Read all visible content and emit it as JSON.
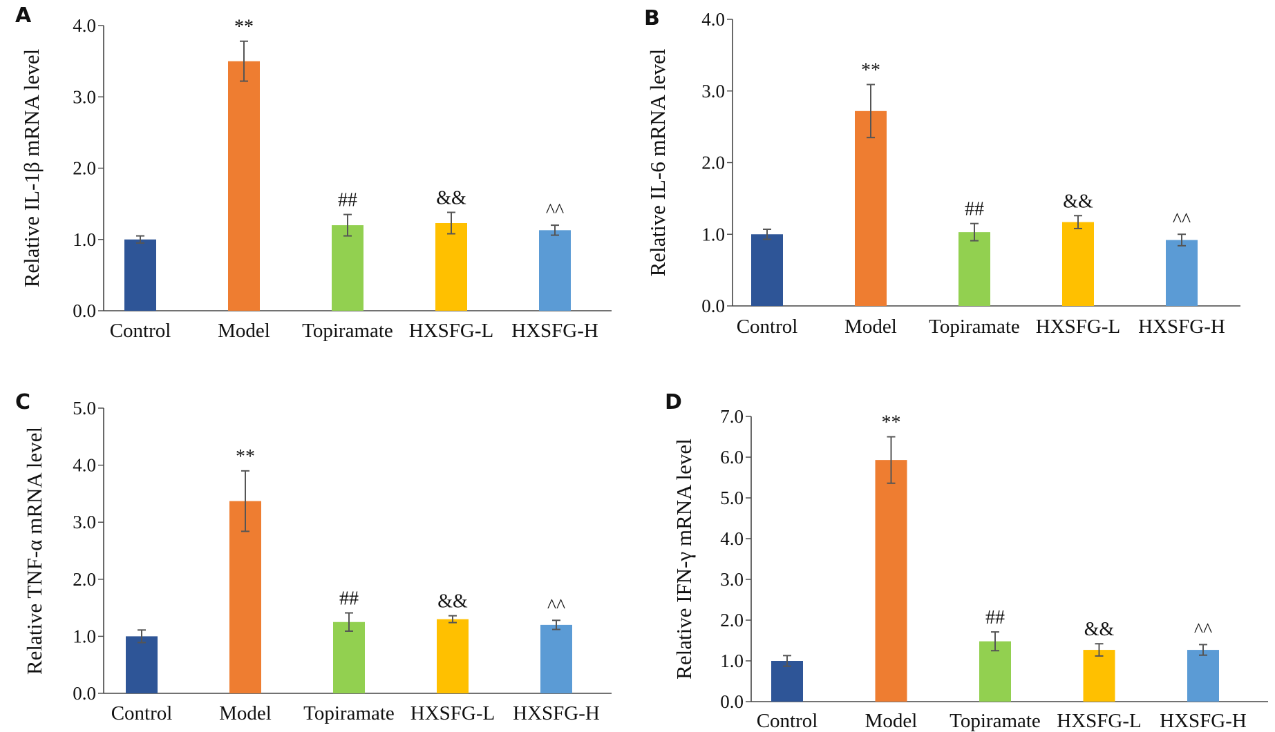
{
  "chart_data": [
    {
      "type": "bar",
      "panel": "A",
      "ylabel": "Relative IL-1β mRNA level",
      "xlabel": "",
      "ylim": [
        0,
        4
      ],
      "yticks": [
        "0.0",
        "1.0",
        "2.0",
        "3.0",
        "4.0"
      ],
      "categories": [
        "Control",
        "Model",
        "Topiramate",
        "HXSFG-L",
        "HXSFG-H"
      ],
      "values": [
        1.0,
        3.5,
        1.2,
        1.23,
        1.13
      ],
      "errors": [
        0.05,
        0.28,
        0.15,
        0.15,
        0.07
      ],
      "annotations": [
        "",
        "**",
        "##",
        "&&",
        "^^"
      ],
      "colors": [
        "#2e5597",
        "#ee7d31",
        "#92d050",
        "#ffc000",
        "#5b9bd5"
      ]
    },
    {
      "type": "bar",
      "panel": "B",
      "ylabel": "Relative IL-6 mRNA level",
      "xlabel": "",
      "ylim": [
        0,
        4
      ],
      "yticks": [
        "0.0",
        "1.0",
        "2.0",
        "3.0",
        "4.0"
      ],
      "categories": [
        "Control",
        "Model",
        "Topiramate",
        "HXSFG-L",
        "HXSFG-H"
      ],
      "values": [
        1.0,
        2.72,
        1.03,
        1.17,
        0.92
      ],
      "errors": [
        0.07,
        0.37,
        0.12,
        0.09,
        0.08
      ],
      "annotations": [
        "",
        "**",
        "##",
        "&&",
        "^^"
      ],
      "colors": [
        "#2e5597",
        "#ee7d31",
        "#92d050",
        "#ffc000",
        "#5b9bd5"
      ]
    },
    {
      "type": "bar",
      "panel": "C",
      "ylabel": "Relative TNF-α mRNA level",
      "xlabel": "",
      "ylim": [
        0,
        5
      ],
      "yticks": [
        "0.0",
        "1.0",
        "2.0",
        "3.0",
        "4.0",
        "5.0"
      ],
      "categories": [
        "Control",
        "Model",
        "Topiramate",
        "HXSFG-L",
        "HXSFG-H"
      ],
      "values": [
        1.0,
        3.37,
        1.25,
        1.3,
        1.2
      ],
      "errors": [
        0.11,
        0.53,
        0.16,
        0.06,
        0.08
      ],
      "annotations": [
        "",
        "**",
        "##",
        "&&",
        "^^"
      ],
      "colors": [
        "#2e5597",
        "#ee7d31",
        "#92d050",
        "#ffc000",
        "#5b9bd5"
      ]
    },
    {
      "type": "bar",
      "panel": "D",
      "ylabel": "Relative IFN-γ mRNA level",
      "xlabel": "",
      "ylim": [
        0,
        7
      ],
      "yticks": [
        "0.0",
        "1.0",
        "2.0",
        "3.0",
        "4.0",
        "5.0",
        "6.0",
        "7.0"
      ],
      "categories": [
        "Control",
        "Model",
        "Topiramate",
        "HXSFG-L",
        "HXSFG-H"
      ],
      "values": [
        1.0,
        5.93,
        1.48,
        1.27,
        1.27
      ],
      "errors": [
        0.13,
        0.57,
        0.23,
        0.15,
        0.13
      ],
      "annotations": [
        "",
        "**",
        "##",
        "&&",
        "^^"
      ],
      "colors": [
        "#2e5597",
        "#ee7d31",
        "#92d050",
        "#ffc000",
        "#5b9bd5"
      ]
    }
  ]
}
